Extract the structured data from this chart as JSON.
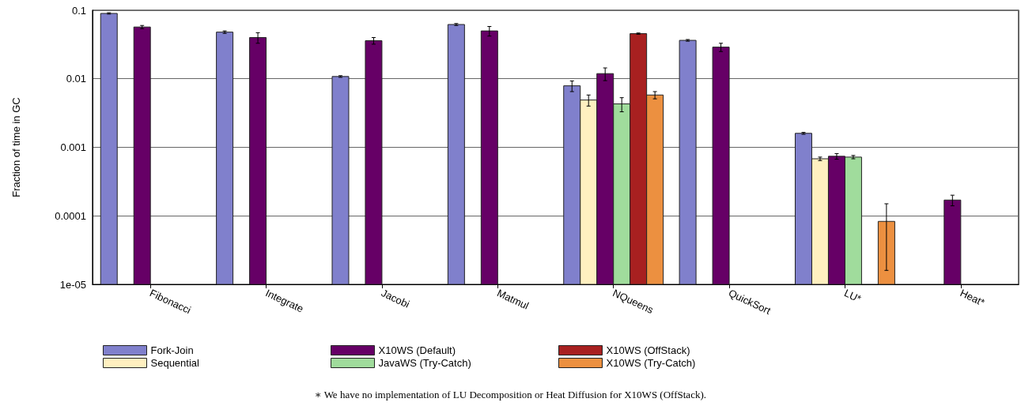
{
  "chart_data": {
    "type": "bar",
    "ylabel": "Fraction of time in GC",
    "categories": [
      "Fibonacci",
      "Integrate",
      "Jacobi",
      "Matmul",
      "NQueens",
      "QuickSort",
      "LU*",
      "Heat*"
    ],
    "series": [
      {
        "name": "Fork-Join",
        "color": "#8080cc",
        "values": [
          0.09,
          0.048,
          0.0108,
          0.062,
          0.0079,
          0.0364,
          0.0016,
          null
        ],
        "errors": [
          0.002,
          0.002,
          0.0003,
          0.002,
          0.0014,
          0.001,
          5e-05,
          null
        ]
      },
      {
        "name": "Sequential",
        "color": "#fff0c0",
        "values": [
          null,
          null,
          null,
          null,
          0.0049,
          null,
          0.00068,
          null
        ],
        "errors": [
          null,
          null,
          null,
          null,
          0.0009,
          null,
          4e-05,
          null
        ]
      },
      {
        "name": "X10WS (Default)",
        "color": "#660066",
        "values": [
          0.057,
          0.04,
          0.036,
          0.05,
          0.0119,
          0.029,
          0.00074,
          0.00017
        ],
        "errors": [
          0.003,
          0.007,
          0.004,
          0.008,
          0.0025,
          0.004,
          7e-05,
          3e-05
        ]
      },
      {
        "name": "JavaWS (Try-Catch)",
        "color": "#a0dc9c",
        "values": [
          null,
          null,
          null,
          null,
          0.0043,
          null,
          0.00072,
          null
        ],
        "errors": [
          null,
          null,
          null,
          null,
          0.001,
          null,
          4e-05,
          null
        ]
      },
      {
        "name": "X10WS (OffStack)",
        "color": "#a82020",
        "values": [
          null,
          null,
          null,
          null,
          0.0456,
          null,
          null,
          null
        ],
        "errors": [
          null,
          null,
          null,
          null,
          0.001,
          null,
          null,
          null
        ]
      },
      {
        "name": "X10WS (Try-Catch)",
        "color": "#ec9040",
        "values": [
          null,
          null,
          null,
          null,
          0.0058,
          null,
          8.3e-05,
          null
        ],
        "errors": [
          null,
          null,
          null,
          null,
          0.0007,
          null,
          [
            1.6e-05,
            0.00015
          ],
          null
        ]
      }
    ],
    "log": "y",
    "ylim": [
      1e-05,
      0.1
    ],
    "yticks": [
      {
        "value": 1e-05,
        "label": "1e-05"
      },
      0.0001,
      0.001,
      0.01,
      0.1
    ],
    "grid": "y",
    "legend": "bottom",
    "annotations": [
      "∗ We have no implementation of LU Decomposition or Heat Diffusion for X10WS (OffStack)."
    ]
  }
}
